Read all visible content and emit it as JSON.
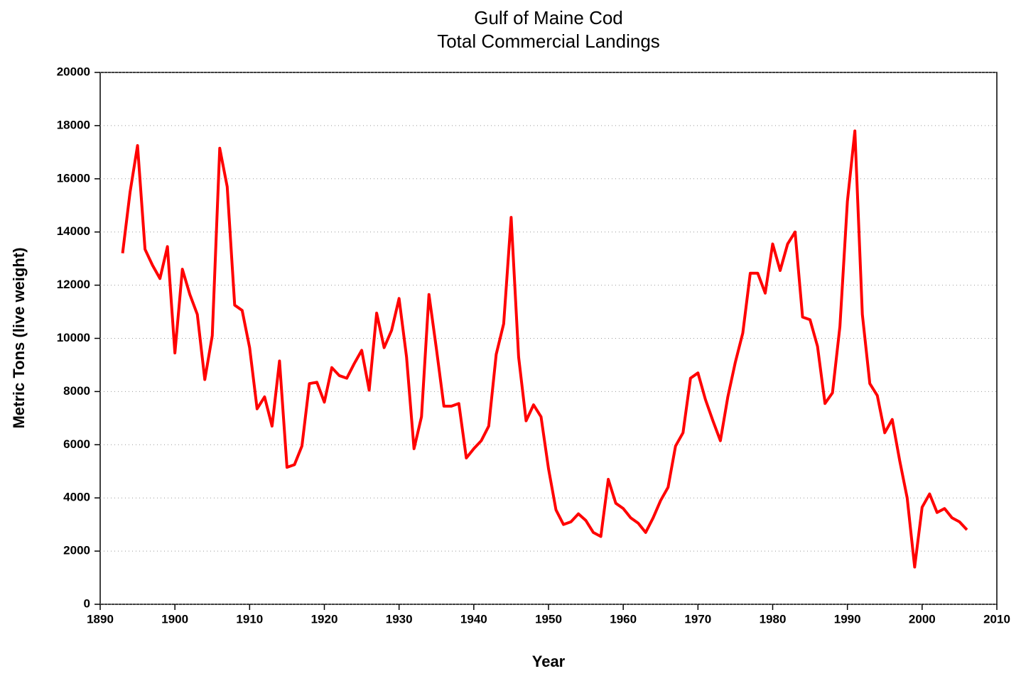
{
  "chart_data": {
    "type": "line",
    "title": [
      "Gulf of Maine Cod",
      "Total Commercial Landings"
    ],
    "x_label": "Year",
    "y_label": "Metric Tons (live weight)",
    "x": [
      1893,
      1894,
      1895,
      1896,
      1897,
      1898,
      1899,
      1900,
      1901,
      1902,
      1903,
      1904,
      1905,
      1906,
      1907,
      1908,
      1909,
      1910,
      1911,
      1912,
      1913,
      1914,
      1915,
      1916,
      1917,
      1918,
      1919,
      1920,
      1921,
      1922,
      1923,
      1924,
      1925,
      1926,
      1927,
      1928,
      1929,
      1930,
      1931,
      1932,
      1933,
      1934,
      1935,
      1936,
      1937,
      1938,
      1939,
      1940,
      1941,
      1942,
      1943,
      1944,
      1945,
      1946,
      1947,
      1948,
      1949,
      1950,
      1951,
      1952,
      1953,
      1954,
      1955,
      1956,
      1957,
      1958,
      1959,
      1960,
      1961,
      1962,
      1963,
      1964,
      1965,
      1966,
      1967,
      1968,
      1969,
      1970,
      1971,
      1972,
      1973,
      1974,
      1975,
      1976,
      1977,
      1978,
      1979,
      1980,
      1981,
      1982,
      1983,
      1984,
      1985,
      1986,
      1987,
      1988,
      1989,
      1990,
      1991,
      1992,
      1993,
      1994,
      1995,
      1996,
      1997,
      1998,
      1999,
      2000,
      2001,
      2002,
      2003,
      2004,
      2005,
      2006
    ],
    "series": [
      {
        "name": "Total Commercial Landings",
        "color": "#ff0000",
        "values": [
          13200,
          15500,
          17250,
          13350,
          12750,
          12250,
          13450,
          9450,
          12600,
          11650,
          10900,
          8450,
          10100,
          17150,
          15700,
          11250,
          11050,
          9650,
          7350,
          7800,
          6700,
          9150,
          5150,
          5250,
          5950,
          8300,
          8350,
          7600,
          8900,
          8600,
          8500,
          9050,
          9550,
          8050,
          10950,
          9650,
          10300,
          11500,
          9300,
          5850,
          7050,
          11650,
          9600,
          7450,
          7450,
          7550,
          5500,
          5850,
          6150,
          6700,
          9400,
          10550,
          14550,
          9300,
          6900,
          7500,
          7050,
          5100,
          3550,
          3000,
          3100,
          3400,
          3150,
          2700,
          2550,
          4700,
          3800,
          3600,
          3250,
          3050,
          2700,
          3250,
          3900,
          4400,
          5950,
          6450,
          8500,
          8700,
          7700,
          6900,
          6150,
          7800,
          9100,
          10200,
          12450,
          12450,
          11700,
          13550,
          12550,
          13550,
          14000,
          10800,
          10700,
          9700,
          7550,
          7950,
          10450,
          15150,
          17800,
          10900,
          8300,
          7850,
          6450,
          6950,
          5400,
          4000,
          1400,
          3650,
          4150,
          3450,
          3600,
          3250,
          3100,
          2800
        ]
      }
    ],
    "xlim": [
      1890,
      2010
    ],
    "xticks": [
      1890,
      1900,
      1910,
      1920,
      1930,
      1940,
      1950,
      1960,
      1970,
      1980,
      1990,
      2000,
      2010
    ],
    "ylim": [
      0,
      20000
    ],
    "yticks": [
      0,
      2000,
      4000,
      6000,
      8000,
      10000,
      12000,
      14000,
      16000,
      18000,
      20000
    ],
    "grid": true
  }
}
